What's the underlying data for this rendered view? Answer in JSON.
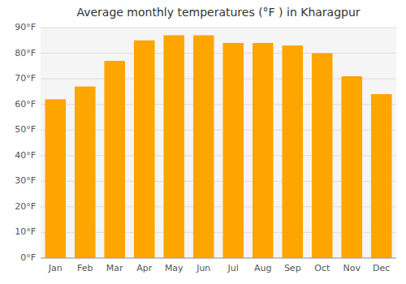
{
  "chart_data": {
    "type": "bar",
    "title": "Average monthly temperatures (°F ) in Kharagpur",
    "categories": [
      "Jan",
      "Feb",
      "Mar",
      "Apr",
      "May",
      "Jun",
      "Jul",
      "Aug",
      "Sep",
      "Oct",
      "Nov",
      "Dec"
    ],
    "values": [
      62,
      67,
      77,
      85,
      87,
      87,
      84,
      84,
      83,
      80,
      71,
      64
    ],
    "color": "#FFA500",
    "ylim": [
      0,
      90
    ],
    "yticks": [
      {
        "value": 0,
        "label": "0°F"
      },
      {
        "value": 10,
        "label": "10°F"
      },
      {
        "value": 20,
        "label": "20°F"
      },
      {
        "value": 30,
        "label": "30°F"
      },
      {
        "value": 40,
        "label": "40°F"
      },
      {
        "value": 50,
        "label": "50°F"
      },
      {
        "value": 60,
        "label": "60°F"
      },
      {
        "value": 70,
        "label": "70°F"
      },
      {
        "value": 80,
        "label": "80°F"
      },
      {
        "value": 90,
        "label": "90°F"
      }
    ],
    "grid": true
  }
}
